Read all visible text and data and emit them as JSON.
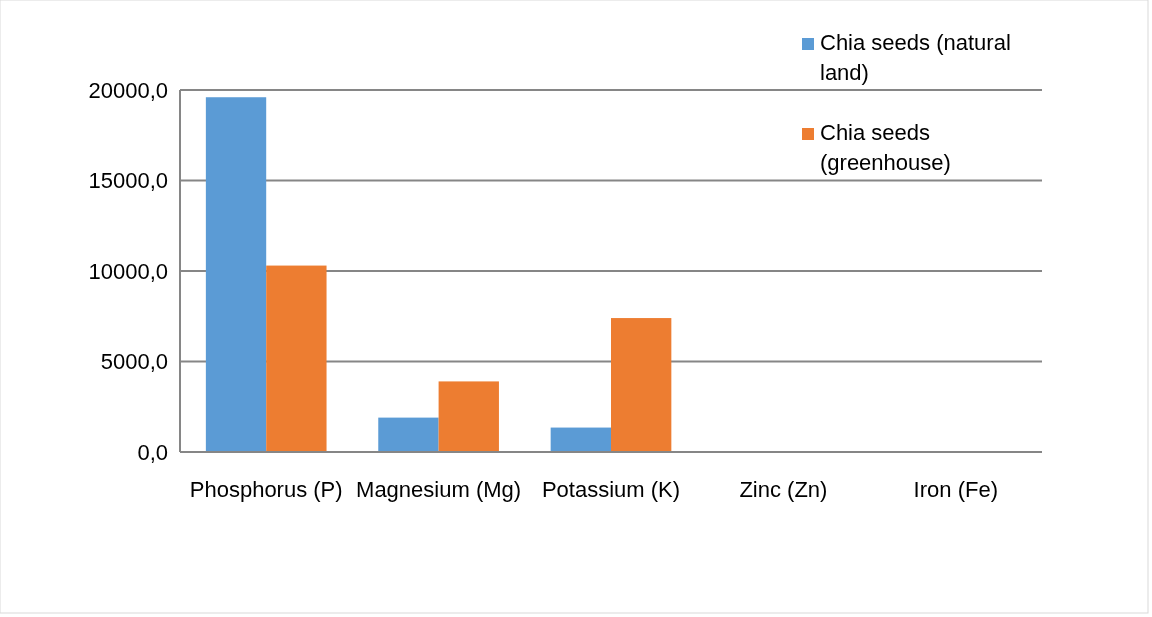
{
  "chart_data": {
    "type": "bar",
    "categories": [
      "Phosphorus (P)",
      "Magnesium (Mg)",
      "Potassium (K)",
      "Zinc (Zn)",
      "Iron (Fe)"
    ],
    "series": [
      {
        "name": "Chia seeds (natural land)",
        "color": "#5b9bd5",
        "values": [
          19600,
          1900,
          1350,
          50,
          40
        ]
      },
      {
        "name": "Chia seeds (greenhouse)",
        "color": "#ed7d31",
        "values": [
          10300,
          3900,
          7400,
          50,
          40
        ]
      }
    ],
    "ylim": [
      0,
      20000
    ],
    "yticks": [
      {
        "value": 0,
        "label": "0,0"
      },
      {
        "value": 5000,
        "label": "5000,0"
      },
      {
        "value": 10000,
        "label": "10000,0"
      },
      {
        "value": 15000,
        "label": "15000,0"
      },
      {
        "value": 20000,
        "label": "20000,0"
      }
    ],
    "grid": "y",
    "legend": "top right"
  }
}
